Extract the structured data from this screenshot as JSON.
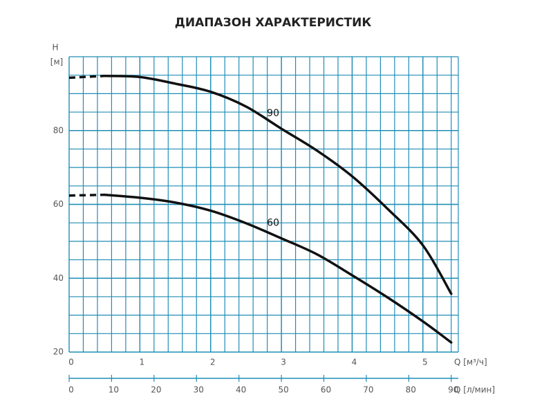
{
  "chart_data": {
    "type": "line",
    "title": "ДИАПАЗОН ХАРАКТЕРИСТИК",
    "y_label": "H",
    "y_unit": "[м]",
    "x_label": "Q [м³/ч]",
    "x2_label": "Q [л/мин]",
    "x": [
      0,
      0.5,
      1,
      1.5,
      2,
      2.5,
      3,
      3.5,
      4,
      4.5,
      5,
      5.4
    ],
    "series": [
      {
        "name": "90",
        "color": "#111111",
        "values": [
          94.3,
          94.8,
          94.5,
          92.7,
          90.5,
          86.5,
          80.5,
          74.6,
          67.6,
          58.8,
          48.9,
          35.8
        ]
      },
      {
        "name": "60",
        "color": "#111111",
        "values": [
          62.4,
          62.6,
          61.8,
          60.5,
          58.3,
          54.9,
          50.8,
          46.5,
          40.8,
          34.8,
          28.3,
          22.6
        ]
      }
    ],
    "xlim": [
      0,
      5.5
    ],
    "xticks": [
      0,
      1,
      2,
      3,
      4,
      5
    ],
    "x2lim": [
      0,
      91.67
    ],
    "x2ticks": [
      0,
      10,
      20,
      30,
      40,
      50,
      60,
      70,
      80,
      90
    ],
    "ylim": [
      20,
      100
    ],
    "yticks": [
      20,
      40,
      60,
      80
    ],
    "grid": true,
    "grid_color": "#1f8db5"
  }
}
